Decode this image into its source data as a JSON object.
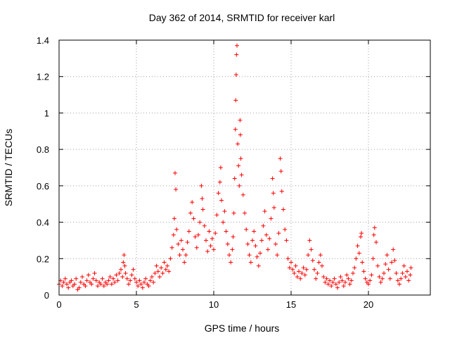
{
  "chart_data": {
    "type": "scatter",
    "title": "Day 362 of 2014, SRMTID for receiver karl",
    "xlabel": "GPS time / hours",
    "ylabel": "SRMTID / TECUs",
    "xlim": [
      0,
      24
    ],
    "ylim": [
      0,
      1.4
    ],
    "xticks": [
      0,
      5,
      10,
      15,
      20
    ],
    "xtick_labels": [
      "0",
      "5",
      "10",
      "15",
      "20"
    ],
    "yticks": [
      0,
      0.2,
      0.4,
      0.6,
      0.8,
      1,
      1.2,
      1.4
    ],
    "ytick_labels": [
      "0",
      "0.2",
      "0.4",
      "0.6",
      "0.8",
      "1",
      "1.2",
      "1.4"
    ],
    "grid": true,
    "marker": "plus",
    "color": "#ff0000",
    "series": [
      {
        "name": "SRMTID",
        "points": [
          [
            0.0,
            0.06
          ],
          [
            0.1,
            0.08
          ],
          [
            0.2,
            0.05
          ],
          [
            0.3,
            0.07
          ],
          [
            0.4,
            0.09
          ],
          [
            0.5,
            0.06
          ],
          [
            0.6,
            0.04
          ],
          [
            0.7,
            0.07
          ],
          [
            0.8,
            0.08
          ],
          [
            0.9,
            0.05
          ],
          [
            1.0,
            0.06
          ],
          [
            1.1,
            0.09
          ],
          [
            1.2,
            0.03
          ],
          [
            1.3,
            0.04
          ],
          [
            1.4,
            0.07
          ],
          [
            1.5,
            0.1
          ],
          [
            1.6,
            0.06
          ],
          [
            1.7,
            0.05
          ],
          [
            1.8,
            0.08
          ],
          [
            1.9,
            0.11
          ],
          [
            2.0,
            0.07
          ],
          [
            2.1,
            0.06
          ],
          [
            2.2,
            0.09
          ],
          [
            2.3,
            0.12
          ],
          [
            2.4,
            0.08
          ],
          [
            2.5,
            0.05
          ],
          [
            2.6,
            0.07
          ],
          [
            2.7,
            0.06
          ],
          [
            2.8,
            0.09
          ],
          [
            2.9,
            0.05
          ],
          [
            3.0,
            0.07
          ],
          [
            3.1,
            0.06
          ],
          [
            3.2,
            0.08
          ],
          [
            3.3,
            0.1
          ],
          [
            3.4,
            0.06
          ],
          [
            3.5,
            0.09
          ],
          [
            3.6,
            0.07
          ],
          [
            3.7,
            0.11
          ],
          [
            3.8,
            0.08
          ],
          [
            3.9,
            0.12
          ],
          [
            4.0,
            0.14
          ],
          [
            4.1,
            0.1
          ],
          [
            4.15,
            0.18
          ],
          [
            4.2,
            0.22
          ],
          [
            4.25,
            0.16
          ],
          [
            4.3,
            0.12
          ],
          [
            4.4,
            0.09
          ],
          [
            4.5,
            0.06
          ],
          [
            4.6,
            0.08
          ],
          [
            4.7,
            0.11
          ],
          [
            4.8,
            0.14
          ],
          [
            4.9,
            0.09
          ],
          [
            5.0,
            0.07
          ],
          [
            5.1,
            0.05
          ],
          [
            5.2,
            0.08
          ],
          [
            5.3,
            0.06
          ],
          [
            5.4,
            0.04
          ],
          [
            5.5,
            0.07
          ],
          [
            5.6,
            0.09
          ],
          [
            5.7,
            0.06
          ],
          [
            5.8,
            0.05
          ],
          [
            5.9,
            0.08
          ],
          [
            6.0,
            0.1
          ],
          [
            6.1,
            0.07
          ],
          [
            6.2,
            0.12
          ],
          [
            6.3,
            0.16
          ],
          [
            6.4,
            0.13
          ],
          [
            6.5,
            0.1
          ],
          [
            6.6,
            0.15
          ],
          [
            6.7,
            0.12
          ],
          [
            6.8,
            0.18
          ],
          [
            6.9,
            0.14
          ],
          [
            7.0,
            0.16
          ],
          [
            7.1,
            0.13
          ],
          [
            7.2,
            0.2
          ],
          [
            7.3,
            0.26
          ],
          [
            7.4,
            0.33
          ],
          [
            7.45,
            0.42
          ],
          [
            7.5,
            0.67
          ],
          [
            7.55,
            0.58
          ],
          [
            7.6,
            0.36
          ],
          [
            7.7,
            0.28
          ],
          [
            7.8,
            0.22
          ],
          [
            7.9,
            0.3
          ],
          [
            8.0,
            0.25
          ],
          [
            8.1,
            0.18
          ],
          [
            8.2,
            0.22
          ],
          [
            8.3,
            0.29
          ],
          [
            8.4,
            0.35
          ],
          [
            8.5,
            0.45
          ],
          [
            8.6,
            0.51
          ],
          [
            8.7,
            0.42
          ],
          [
            8.8,
            0.32
          ],
          [
            8.9,
            0.26
          ],
          [
            9.0,
            0.33
          ],
          [
            9.1,
            0.4
          ],
          [
            9.2,
            0.6
          ],
          [
            9.25,
            0.53
          ],
          [
            9.3,
            0.47
          ],
          [
            9.4,
            0.38
          ],
          [
            9.5,
            0.3
          ],
          [
            9.6,
            0.24
          ],
          [
            9.7,
            0.35
          ],
          [
            9.8,
            0.27
          ],
          [
            9.9,
            0.31
          ],
          [
            10.0,
            0.25
          ],
          [
            10.1,
            0.34
          ],
          [
            10.2,
            0.44
          ],
          [
            10.3,
            0.56
          ],
          [
            10.4,
            0.62
          ],
          [
            10.45,
            0.7
          ],
          [
            10.5,
            0.52
          ],
          [
            10.6,
            0.4
          ],
          [
            10.7,
            0.46
          ],
          [
            10.8,
            0.35
          ],
          [
            10.9,
            0.28
          ],
          [
            11.0,
            0.22
          ],
          [
            11.1,
            0.18
          ],
          [
            11.2,
            0.25
          ],
          [
            11.25,
            0.32
          ],
          [
            11.3,
            0.45
          ],
          [
            11.35,
            0.64
          ],
          [
            11.4,
            0.91
          ],
          [
            11.42,
            1.07
          ],
          [
            11.45,
            1.21
          ],
          [
            11.47,
            1.32
          ],
          [
            11.5,
            1.37
          ],
          [
            11.55,
            0.83
          ],
          [
            11.6,
            0.71
          ],
          [
            11.65,
            0.6
          ],
          [
            11.7,
            0.96
          ],
          [
            11.72,
            0.88
          ],
          [
            11.75,
            0.75
          ],
          [
            11.8,
            0.66
          ],
          [
            11.9,
            0.55
          ],
          [
            12.0,
            0.45
          ],
          [
            12.1,
            0.36
          ],
          [
            12.2,
            0.28
          ],
          [
            12.3,
            0.22
          ],
          [
            12.4,
            0.18
          ],
          [
            12.5,
            0.3
          ],
          [
            12.6,
            0.35
          ],
          [
            12.7,
            0.27
          ],
          [
            12.8,
            0.21
          ],
          [
            12.9,
            0.16
          ],
          [
            13.0,
            0.23
          ],
          [
            13.1,
            0.3
          ],
          [
            13.2,
            0.38
          ],
          [
            13.3,
            0.46
          ],
          [
            13.4,
            0.33
          ],
          [
            13.5,
            0.25
          ],
          [
            13.6,
            0.31
          ],
          [
            13.7,
            0.42
          ],
          [
            13.8,
            0.64
          ],
          [
            13.85,
            0.56
          ],
          [
            13.9,
            0.48
          ],
          [
            14.0,
            0.28
          ],
          [
            14.1,
            0.22
          ],
          [
            14.2,
            0.34
          ],
          [
            14.3,
            0.75
          ],
          [
            14.35,
            0.68
          ],
          [
            14.4,
            0.57
          ],
          [
            14.5,
            0.47
          ],
          [
            14.6,
            0.36
          ],
          [
            14.7,
            0.3
          ],
          [
            14.8,
            0.2
          ],
          [
            14.9,
            0.15
          ],
          [
            15.0,
            0.18
          ],
          [
            15.1,
            0.14
          ],
          [
            15.2,
            0.12
          ],
          [
            15.3,
            0.16
          ],
          [
            15.4,
            0.1
          ],
          [
            15.5,
            0.13
          ],
          [
            15.6,
            0.09
          ],
          [
            15.7,
            0.12
          ],
          [
            15.8,
            0.15
          ],
          [
            15.9,
            0.11
          ],
          [
            16.0,
            0.14
          ],
          [
            16.1,
            0.22
          ],
          [
            16.2,
            0.3
          ],
          [
            16.3,
            0.25
          ],
          [
            16.4,
            0.19
          ],
          [
            16.5,
            0.14
          ],
          [
            16.6,
            0.09
          ],
          [
            16.7,
            0.12
          ],
          [
            16.8,
            0.18
          ],
          [
            16.9,
            0.22
          ],
          [
            17.0,
            0.16
          ],
          [
            17.1,
            0.1
          ],
          [
            17.2,
            0.07
          ],
          [
            17.3,
            0.09
          ],
          [
            17.4,
            0.06
          ],
          [
            17.5,
            0.08
          ],
          [
            17.6,
            0.05
          ],
          [
            17.7,
            0.07
          ],
          [
            17.8,
            0.09
          ],
          [
            17.9,
            0.06
          ],
          [
            18.0,
            0.04
          ],
          [
            18.1,
            0.07
          ],
          [
            18.2,
            0.1
          ],
          [
            18.3,
            0.08
          ],
          [
            18.4,
            0.05
          ],
          [
            18.5,
            0.07
          ],
          [
            18.6,
            0.11
          ],
          [
            18.7,
            0.09
          ],
          [
            18.8,
            0.06
          ],
          [
            18.9,
            0.08
          ],
          [
            19.0,
            0.12
          ],
          [
            19.1,
            0.15
          ],
          [
            19.2,
            0.2
          ],
          [
            19.3,
            0.27
          ],
          [
            19.4,
            0.23
          ],
          [
            19.5,
            0.32
          ],
          [
            19.55,
            0.34
          ],
          [
            19.6,
            0.18
          ],
          [
            19.7,
            0.13
          ],
          [
            19.8,
            0.09
          ],
          [
            19.9,
            0.07
          ],
          [
            20.0,
            0.06
          ],
          [
            20.1,
            0.08
          ],
          [
            20.2,
            0.11
          ],
          [
            20.3,
            0.2
          ],
          [
            20.35,
            0.33
          ],
          [
            20.4,
            0.37
          ],
          [
            20.5,
            0.29
          ],
          [
            20.6,
            0.16
          ],
          [
            20.7,
            0.1
          ],
          [
            20.8,
            0.07
          ],
          [
            20.9,
            0.09
          ],
          [
            21.0,
            0.12
          ],
          [
            21.1,
            0.17
          ],
          [
            21.2,
            0.22
          ],
          [
            21.3,
            0.14
          ],
          [
            21.4,
            0.09
          ],
          [
            21.5,
            0.18
          ],
          [
            21.6,
            0.25
          ],
          [
            21.7,
            0.19
          ],
          [
            21.8,
            0.12
          ],
          [
            21.9,
            0.08
          ],
          [
            22.0,
            0.06
          ],
          [
            22.1,
            0.09
          ],
          [
            22.2,
            0.12
          ],
          [
            22.3,
            0.16
          ],
          [
            22.4,
            0.1
          ],
          [
            22.5,
            0.13
          ],
          [
            22.6,
            0.08
          ],
          [
            22.7,
            0.11
          ],
          [
            22.75,
            0.15
          ]
        ]
      }
    ]
  }
}
